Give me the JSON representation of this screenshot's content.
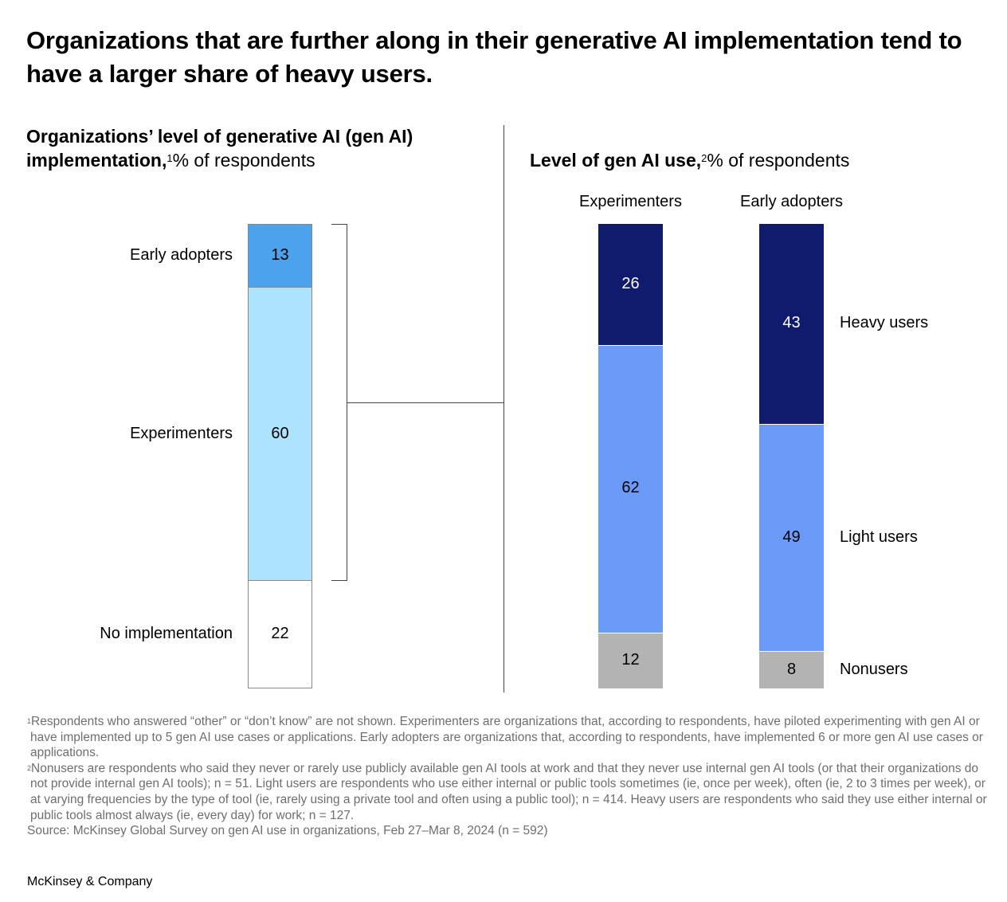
{
  "title": "Organizations that are further along in their generative AI implementation tend to have a larger share of heavy users.",
  "left_panel": {
    "heading_bold_1": "Organizations’ level of generative AI (gen AI)",
    "heading_bold_2": "implementation,",
    "footnote_ref": "1",
    "heading_regular": "% of respondents"
  },
  "right_panel": {
    "heading_bold": "Level of gen AI use,",
    "footnote_ref": "2",
    "heading_regular": "% of respondents"
  },
  "chart_data": [
    {
      "type": "bar",
      "stacked": true,
      "categories": [
        "Early adopters",
        "Experimenters",
        "No implementation"
      ],
      "values": [
        13,
        60,
        22
      ],
      "colors": [
        "#4aa3ec",
        "#aee3fe",
        "#ffffff"
      ]
    },
    {
      "type": "bar",
      "stacked": true,
      "categories": [
        "Experimenters",
        "Early adopters"
      ],
      "series": [
        {
          "name": "Heavy users",
          "values": [
            26,
            43
          ],
          "color": "#101b6e"
        },
        {
          "name": "Light users",
          "values": [
            62,
            49
          ],
          "color": "#6b9bf8"
        },
        {
          "name": "Nonusers",
          "values": [
            12,
            8
          ],
          "color": "#b3b3b3"
        }
      ]
    }
  ],
  "footnotes": {
    "note1_mark": "1",
    "note1": "Respondents who answered “other” or “don’t know” are not shown. Experimenters are organizations that, according to respondents, have piloted experimenting with gen AI or have implemented up to 5 gen AI use cases or applications. Early adopters are organizations that, according to respondents, have implemented 6 or more gen AI use cases or applications.",
    "note2_mark": "2",
    "note2": "Nonusers are respondents who said they never or rarely use publicly available gen AI tools at work and that they never use internal gen AI tools (or that their organizations do not provide internal gen AI tools); n = 51. Light users are respondents who use either internal or public tools sometimes (ie, once per week), often (ie, 2 to 3 times per week), or at varying frequencies by the type of tool (ie, rarely using a private tool and often using a public tool); n = 414. Heavy users are respondents who said they use either internal or public tools almost always (ie, every day) for work; n = 127.",
    "source": "Source: McKinsey Global Survey on gen AI use in organizations, Feb 27–Mar 8, 2024 (n = 592)"
  },
  "brand": "McKinsey & Company"
}
